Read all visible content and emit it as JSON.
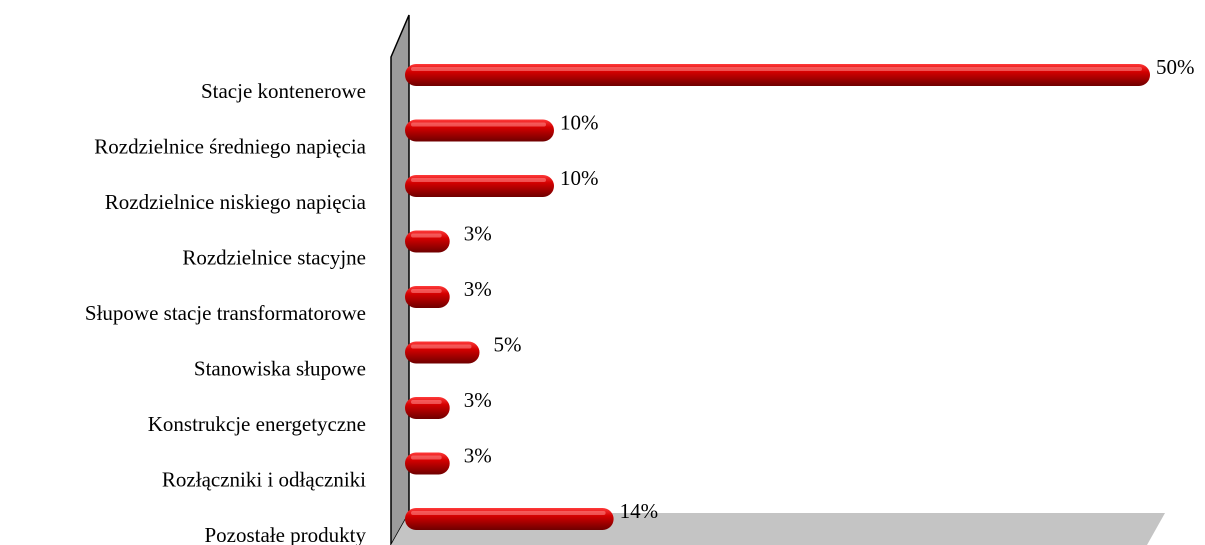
{
  "chart_data": {
    "type": "bar",
    "orientation": "horizontal",
    "categories": [
      "Stacje kontenerowe",
      "Rozdzielnice średniego napięcia",
      "Rozdzielnice niskiego napięcia",
      "Rozdzielnice stacyjne",
      "Słupowe stacje transformatorowe",
      "Stanowiska słupowe",
      "Konstrukcje energetyczne",
      "Rozłączniki i odłączniki",
      "Pozostałe produkty"
    ],
    "values": [
      50,
      10,
      10,
      3,
      3,
      5,
      3,
      3,
      14
    ],
    "data_labels": [
      "50%",
      "10%",
      "10%",
      "3%",
      "3%",
      "5%",
      "3%",
      "3%",
      "14%"
    ],
    "unit": "%",
    "xlim": [
      0,
      50
    ],
    "grid": false,
    "legend": "none",
    "title": "",
    "xlabel": "",
    "ylabel": "",
    "colors": {
      "bar_light": "#ff3a3a",
      "bar_mid": "#d40000",
      "bar_dark": "#6e0000",
      "wall": "#9c9c9c",
      "floor": "#c4c4c4",
      "outline": "#000000"
    }
  }
}
